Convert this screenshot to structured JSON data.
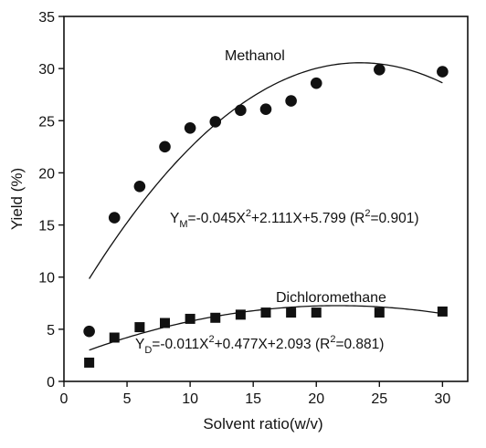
{
  "chart_data": {
    "type": "scatter",
    "xlabel": "Solvent ratio(w/v)",
    "ylabel": "Yield (%)",
    "xlim": [
      0,
      32
    ],
    "ylim": [
      0,
      35
    ],
    "xticks": [
      0,
      5,
      10,
      15,
      20,
      25,
      30
    ],
    "yticks": [
      0,
      5,
      10,
      15,
      20,
      25,
      30,
      35
    ],
    "grid": false,
    "series": [
      {
        "name": "Methanol",
        "marker": "circle",
        "x": [
          2,
          4,
          6,
          8,
          10,
          12,
          14,
          16,
          18,
          20,
          25,
          30
        ],
        "y": [
          4.8,
          15.7,
          18.7,
          22.5,
          24.3,
          24.9,
          26.0,
          26.1,
          26.9,
          28.6,
          29.9,
          29.7
        ],
        "fit": {
          "a": -0.045,
          "b": 2.111,
          "c": 5.799,
          "x_from": 2,
          "x_to": 30
        }
      },
      {
        "name": "Dichloromethane",
        "marker": "square",
        "x": [
          2,
          4,
          6,
          8,
          10,
          12,
          14,
          16,
          18,
          20,
          25,
          30
        ],
        "y": [
          1.8,
          4.2,
          5.2,
          5.6,
          6.0,
          6.1,
          6.4,
          6.6,
          6.6,
          6.6,
          6.6,
          6.7
        ],
        "fit": {
          "a": -0.011,
          "b": 0.477,
          "c": 2.093,
          "x_from": 2,
          "x_to": 30
        }
      }
    ],
    "annotations": {
      "methanol_label": "Methanol",
      "dcm_label": "Dichloromethane",
      "methanol_eq": {
        "y": "Y",
        "sub": "M",
        "rhs": "=-0.045X",
        "sup": "2",
        "rest": "+2.111X+5.799 (R",
        "r2sup": "2",
        "end": "=0.901)"
      },
      "dcm_eq": {
        "y": "Y",
        "sub": "D",
        "rhs": "=-0.011X",
        "sup": "2",
        "rest": "+0.477X+2.093 (R",
        "r2sup": "2",
        "end": "=0.881)"
      }
    }
  }
}
